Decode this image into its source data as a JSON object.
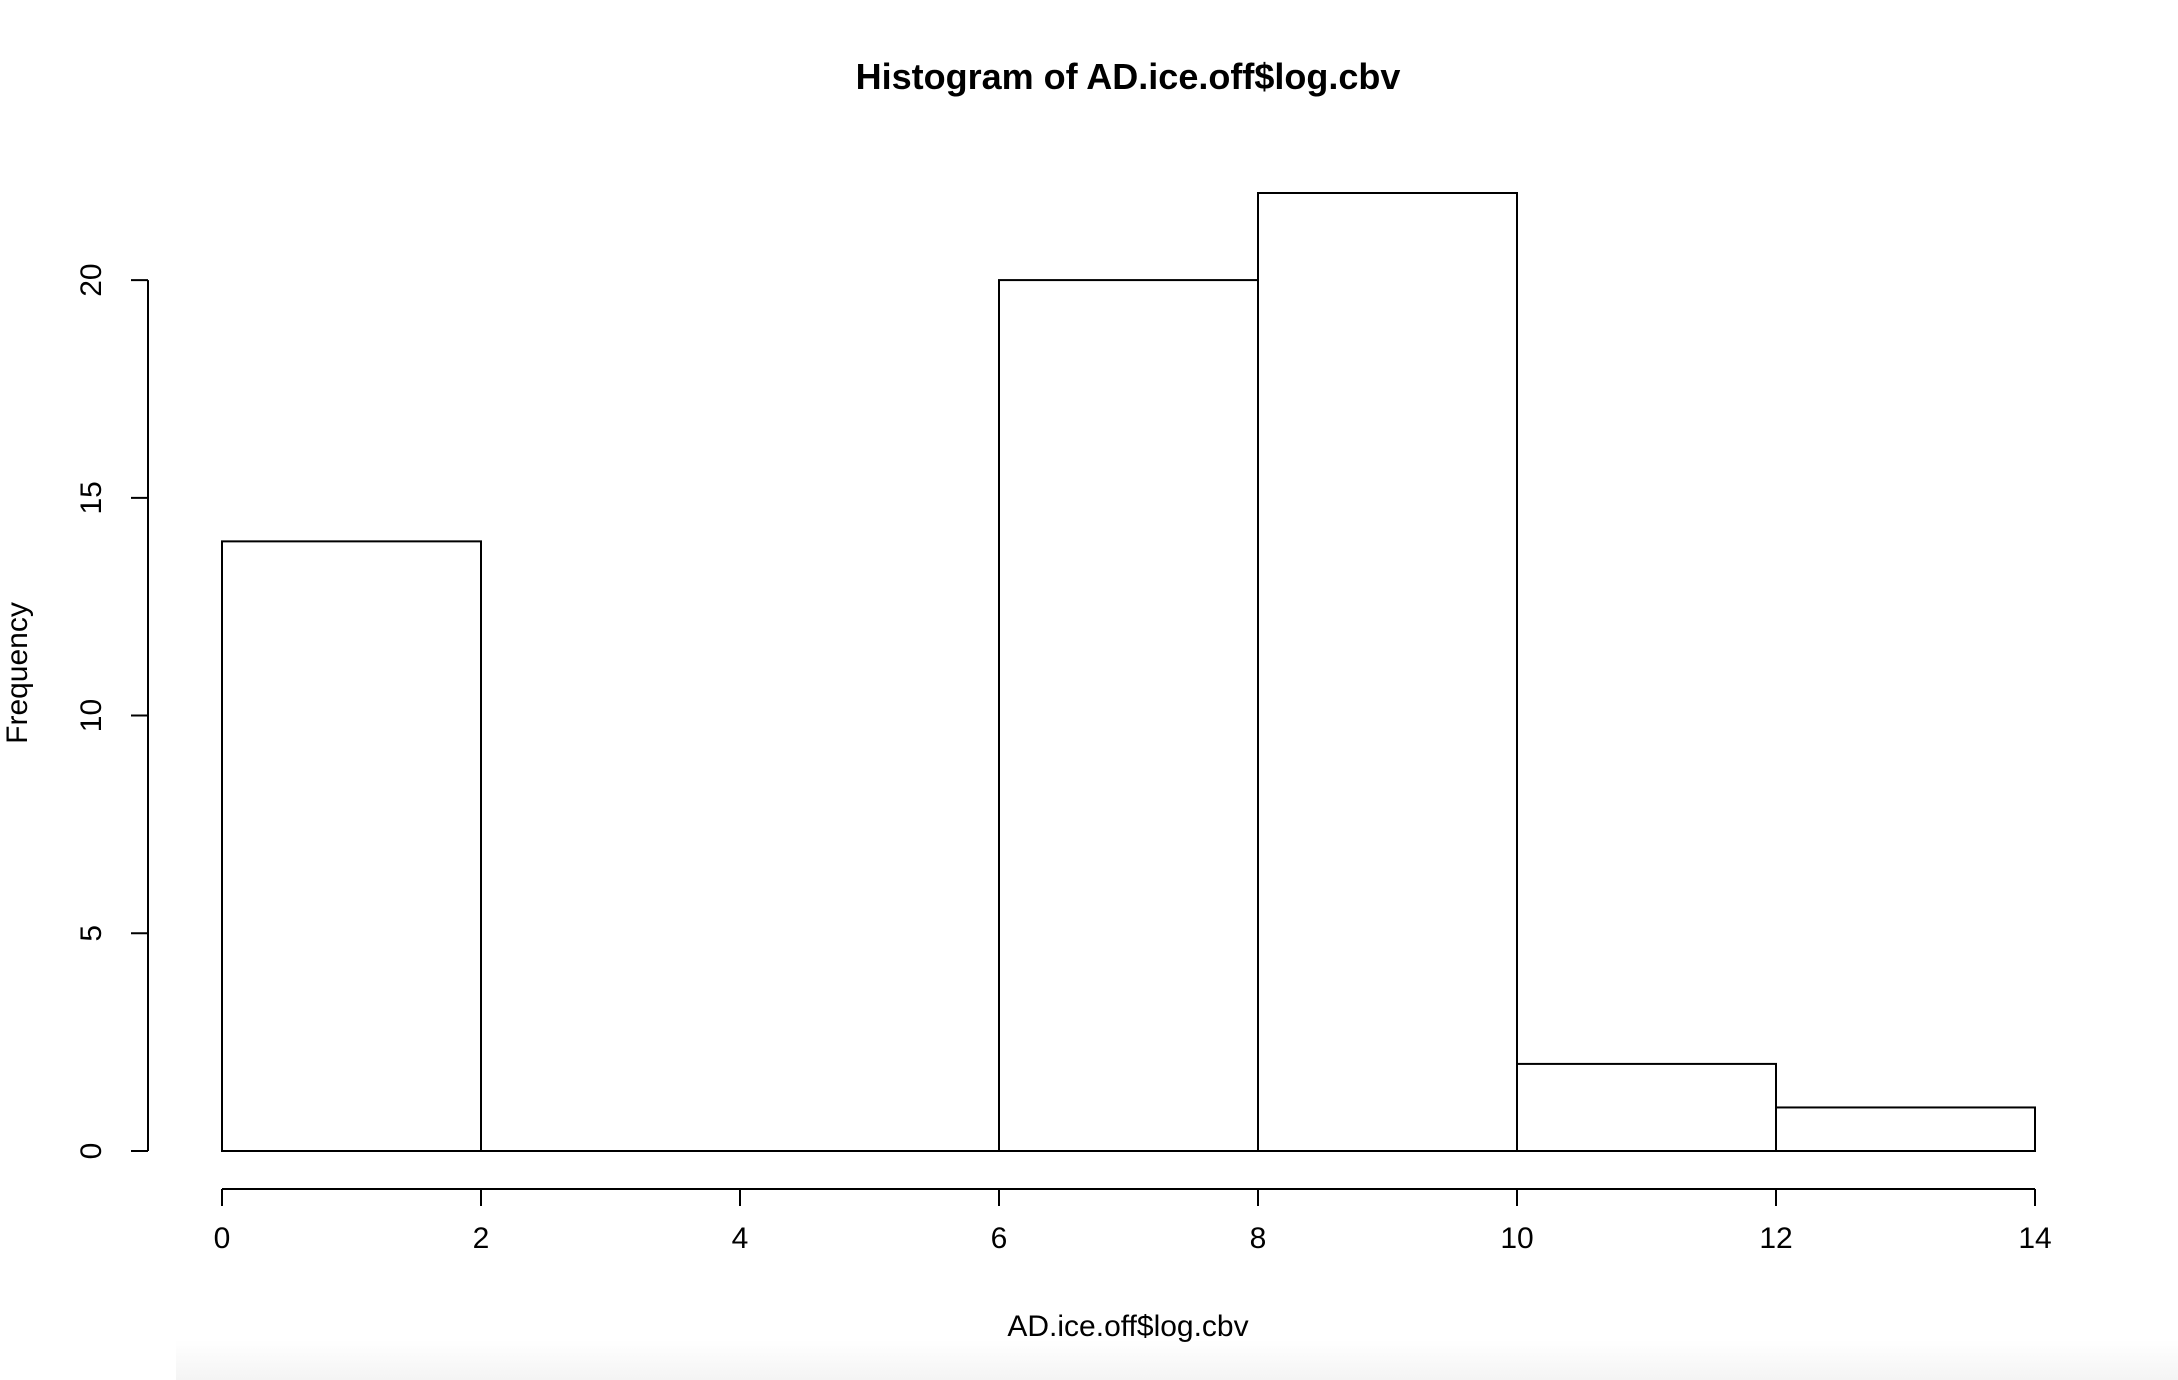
{
  "chart_data": {
    "type": "bar",
    "title": "Histogram of AD.ice.off$log.cbv",
    "xlabel": "AD.ice.off$log.cbv",
    "ylabel": "Frequency",
    "bins": [
      {
        "x0": 0,
        "x1": 2,
        "count": 14
      },
      {
        "x0": 2,
        "x1": 4,
        "count": 0
      },
      {
        "x0": 4,
        "x1": 6,
        "count": 0
      },
      {
        "x0": 6,
        "x1": 8,
        "count": 20
      },
      {
        "x0": 8,
        "x1": 10,
        "count": 22
      },
      {
        "x0": 10,
        "x1": 12,
        "count": 2
      },
      {
        "x0": 12,
        "x1": 14,
        "count": 1
      }
    ],
    "xlim": [
      0,
      14
    ],
    "ylim": [
      0,
      22
    ],
    "x_ticks": [
      "0",
      "2",
      "4",
      "6",
      "8",
      "10",
      "12",
      "14"
    ],
    "y_ticks": [
      "0",
      "5",
      "10",
      "15",
      "20"
    ],
    "bar_fill": "#ffffff",
    "bar_stroke": "#000000",
    "grid": false,
    "legend": "none"
  }
}
